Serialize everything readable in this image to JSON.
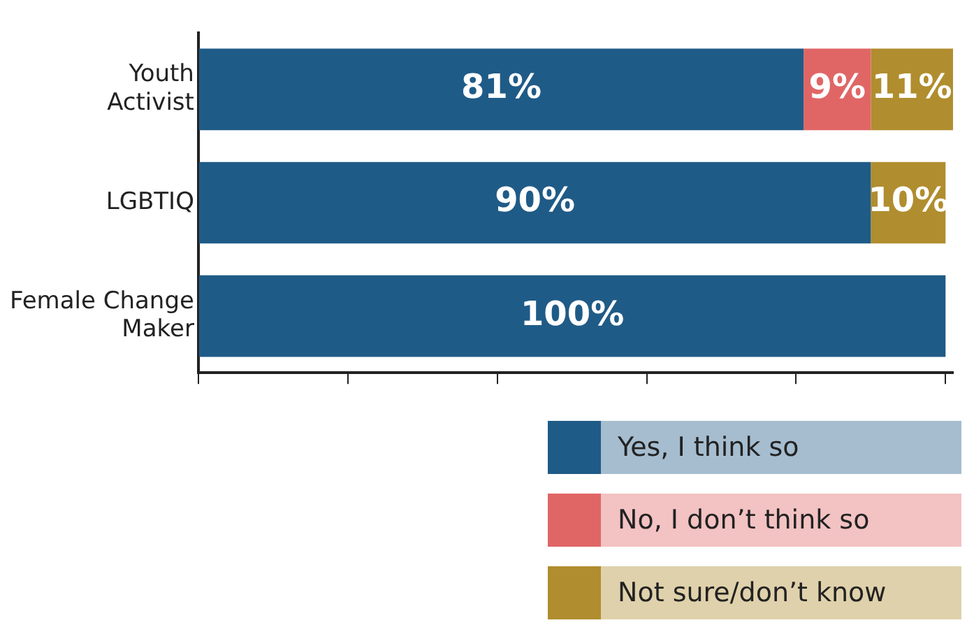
{
  "chart_data": {
    "type": "bar",
    "orientation": "horizontal",
    "stacked": true,
    "categories": [
      "Youth Activist",
      "LGBTIQ",
      "Female Change Maker"
    ],
    "series": [
      {
        "name": "Yes, I think so",
        "color": "#1f5b87",
        "values": [
          81,
          90,
          100
        ],
        "value_labels": [
          "81%",
          "90%",
          "100%"
        ]
      },
      {
        "name": "No, I don’t think so",
        "color": "#e06666",
        "values": [
          9,
          null,
          null
        ],
        "value_labels": [
          "9%",
          null,
          null
        ]
      },
      {
        "name": "Not sure/don’t know",
        "color": "#b08d2e",
        "values": [
          11,
          10,
          null
        ],
        "value_labels": [
          "11%",
          "10%",
          null
        ]
      }
    ],
    "xlim": [
      0,
      101
    ],
    "xticks": [
      {
        "value": 0,
        "label": null
      },
      {
        "value": 20,
        "label": null
      },
      {
        "value": 40,
        "label": null
      },
      {
        "value": 60,
        "label": null
      },
      {
        "value": 80,
        "label": null
      },
      {
        "value": 100,
        "label": null
      }
    ],
    "tick_labels": "y",
    "grid": false,
    "legend": "bottom right"
  }
}
